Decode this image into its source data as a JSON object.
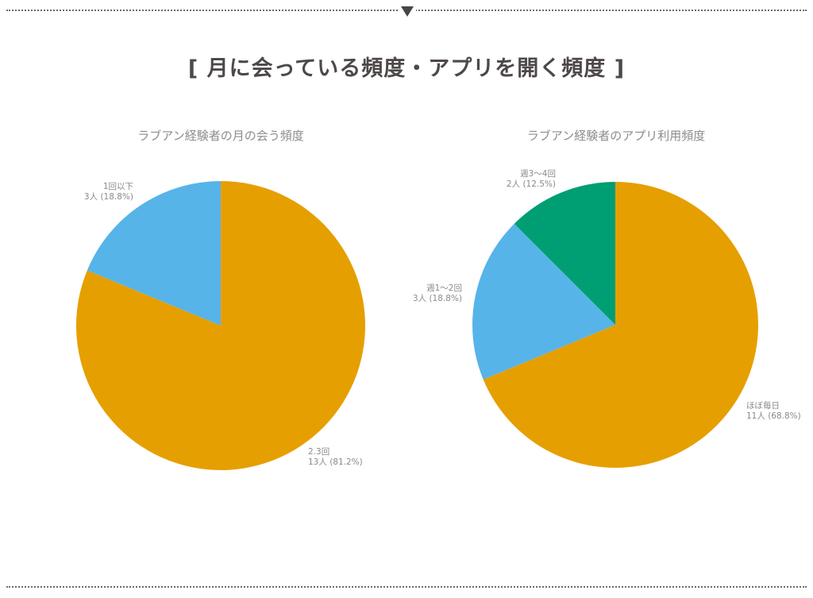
{
  "header": {
    "title": "[ 月に会っている頻度・アプリを開く頻度 ]",
    "divider_icon": "triangle-down-icon"
  },
  "colors": {
    "orange": "#E69F00",
    "blue": "#56B4E9",
    "green": "#009E73",
    "title_text": "#4E4848",
    "label_text": "#8A8A8A",
    "divider": "#6A6A6A"
  },
  "charts": [
    {
      "title": "ラブアン経験者の月の会う頻度",
      "slices": [
        {
          "label": "2.3回",
          "detail": "13人 (81.2%)",
          "count": 13,
          "percent": 81.2,
          "color": "#E69F00"
        },
        {
          "label": "1回以下",
          "detail": "3人 (18.8%)",
          "count": 3,
          "percent": 18.8,
          "color": "#56B4E9"
        }
      ]
    },
    {
      "title": "ラブアン経験者のアプリ利用頻度",
      "slices": [
        {
          "label": "ほぼ毎日",
          "detail": "11人 (68.8%)",
          "count": 11,
          "percent": 68.8,
          "color": "#E69F00"
        },
        {
          "label": "週1〜2回",
          "detail": "3人 (18.8%)",
          "count": 3,
          "percent": 18.8,
          "color": "#56B4E9"
        },
        {
          "label": "週3〜4回",
          "detail": "2人 (12.5%)",
          "count": 2,
          "percent": 12.5,
          "color": "#009E73"
        }
      ]
    }
  ],
  "chart_data": [
    {
      "type": "pie",
      "title": "ラブアン経験者の月の会う頻度",
      "categories": [
        "2.3回",
        "1回以下"
      ],
      "values": [
        13,
        3
      ],
      "percentages": [
        81.2,
        18.8
      ],
      "colors": [
        "#E69F00",
        "#56B4E9"
      ],
      "start_angle": "12 o'clock, clockwise",
      "legend": "none (direct labels)"
    },
    {
      "type": "pie",
      "title": "ラブアン経験者のアプリ利用頻度",
      "categories": [
        "ほぼ毎日",
        "週1〜2回",
        "週3〜4回"
      ],
      "values": [
        11,
        3,
        2
      ],
      "percentages": [
        68.8,
        18.8,
        12.5
      ],
      "colors": [
        "#E69F00",
        "#56B4E9",
        "#009E73"
      ],
      "start_angle": "12 o'clock, clockwise",
      "legend": "none (direct labels)"
    }
  ]
}
